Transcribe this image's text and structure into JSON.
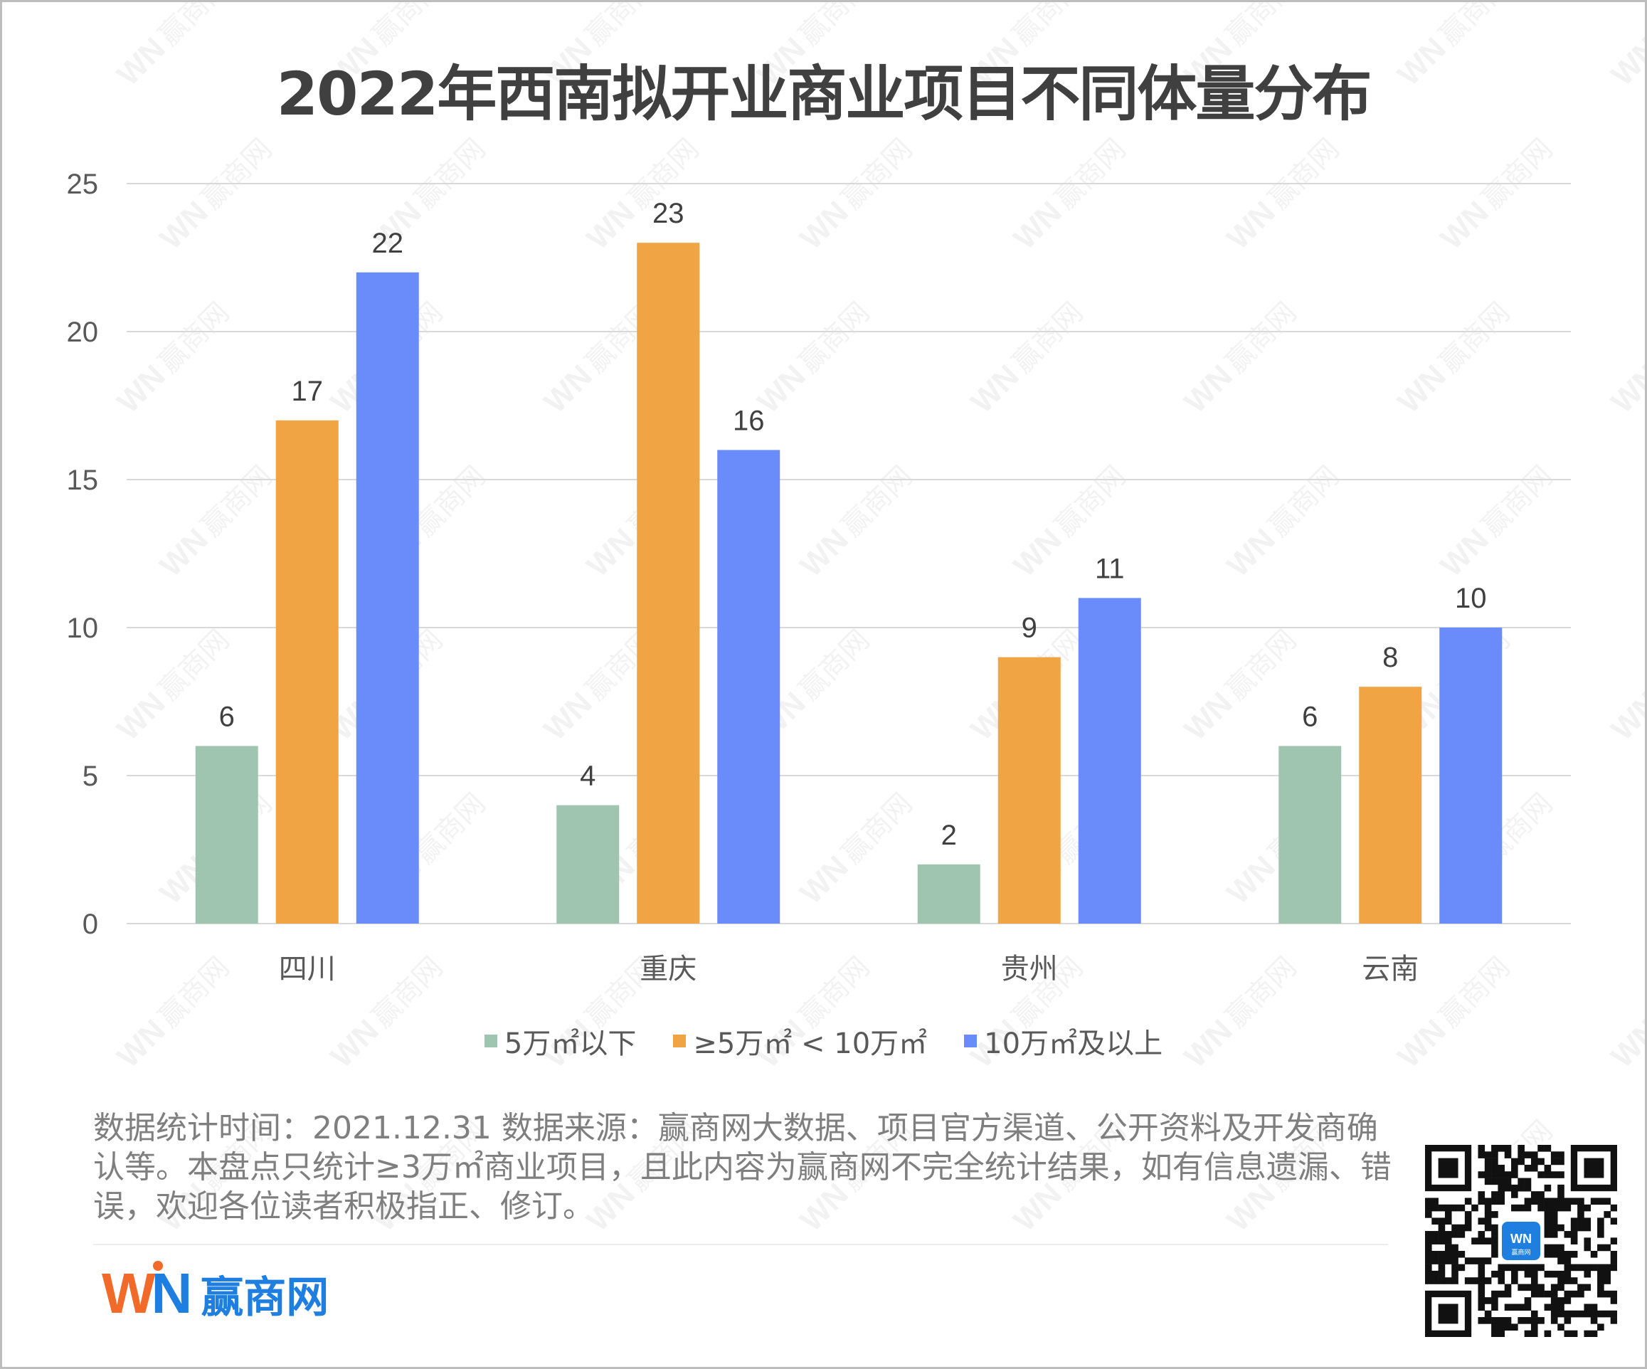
{
  "title": "2022年西南拟开业商业项目不同体量分布",
  "chart_data": {
    "type": "bar",
    "title": "2022年西南拟开业商业项目不同体量分布",
    "categories": [
      "四川",
      "重庆",
      "贵州",
      "云南"
    ],
    "series": [
      {
        "name": "5万㎡以下",
        "color": "#9fc5b1",
        "values": [
          6,
          4,
          2,
          6
        ]
      },
      {
        "name": "≥5万㎡ < 10万㎡",
        "color": "#f0a444",
        "values": [
          17,
          23,
          9,
          8
        ]
      },
      {
        "name": "10万㎡及以上",
        "color": "#6a8cfb",
        "values": [
          22,
          16,
          11,
          10
        ]
      }
    ],
    "ylim": [
      0,
      25
    ],
    "yticks": [
      0,
      5,
      10,
      15,
      20,
      25
    ],
    "grid": true,
    "legend_position": "bottom",
    "data_labels": true
  },
  "footnote": "数据统计时间：2021.12.31 数据来源：赢商网大数据、项目官方渠道、公开资料及开发商确认等。本盘点只统计≥3万㎡商业项目，且此内容为赢商网不完全统计结果，如有信息遗漏、错误，欢迎各位读者积极指正、修订。",
  "brand": {
    "logo_mark": "WN",
    "name": "赢商网",
    "watermark": "赢商网",
    "qr_badge_text": "赢商网"
  },
  "colors": {
    "grid": "#d9d9d9",
    "axis_text": "#595959",
    "brand_orange": "#f26a2a",
    "brand_blue": "#1f7fe0"
  }
}
